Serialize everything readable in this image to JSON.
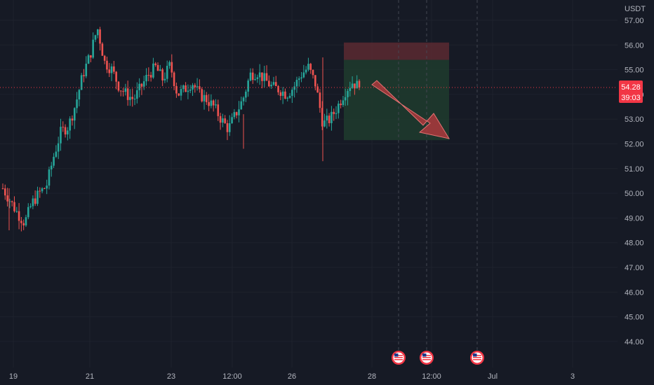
{
  "colors": {
    "background": "#161a25",
    "grid": "#1e222d",
    "up": "#26a69a",
    "down": "#ef5350",
    "price_tag": "#f23645",
    "text": "#b2b5be",
    "stop_zone": "#5b2a31",
    "profit_zone": "#1e3a2e",
    "arrow": "#c0393f"
  },
  "price_axis": {
    "currency": "USDT",
    "ticks": [
      "57.00",
      "56.00",
      "55.00",
      "54.00",
      "53.00",
      "52.00",
      "51.00",
      "50.00",
      "49.00",
      "48.00",
      "47.00",
      "46.00",
      "45.00",
      "44.00"
    ]
  },
  "time_axis": {
    "ticks": [
      "19",
      "21",
      "23",
      "12:00",
      "26",
      "28",
      "12:00",
      "Jul",
      "3"
    ]
  },
  "current_price": {
    "value": "54.28",
    "countdown": "39:03"
  },
  "events": [
    {
      "icon": "us-flag-icon"
    },
    {
      "icon": "us-flag-icon"
    },
    {
      "icon": "us-flag-icon"
    }
  ],
  "chart_data": {
    "type": "candlestick",
    "ylim": [
      43.6,
      57.6
    ],
    "x_unit": "days",
    "y_ticks": [
      57,
      56,
      55,
      54,
      53,
      52,
      51,
      50,
      49,
      48,
      47,
      46,
      45,
      44
    ],
    "x_ticks": [
      "19",
      "21",
      "23",
      "12:00",
      "26",
      "28",
      "12:00",
      "Jul",
      "3"
    ],
    "trend_path": [
      [
        0,
        50.2
      ],
      [
        1.5,
        49.7
      ],
      [
        3,
        49.2
      ],
      [
        4,
        48.8
      ],
      [
        5,
        49.6
      ],
      [
        6,
        50.0
      ],
      [
        7.5,
        50.3
      ],
      [
        9,
        51.5
      ],
      [
        10,
        52.5
      ],
      [
        11,
        52.7
      ],
      [
        12,
        53.6
      ],
      [
        13,
        54.8
      ],
      [
        14,
        55.6
      ],
      [
        15,
        56.7
      ],
      [
        16,
        55.3
      ],
      [
        17,
        55.0
      ],
      [
        18,
        54.3
      ],
      [
        19,
        54.0
      ],
      [
        20,
        53.8
      ],
      [
        21,
        54.3
      ],
      [
        22,
        54.8
      ],
      [
        23,
        55.1
      ],
      [
        24,
        54.6
      ],
      [
        25,
        55.2
      ],
      [
        26,
        54.0
      ],
      [
        27,
        54.2
      ],
      [
        28,
        54.5
      ],
      [
        29,
        54.0
      ],
      [
        30,
        53.8
      ],
      [
        31,
        53.5
      ],
      [
        32,
        53.0
      ],
      [
        33,
        52.6
      ],
      [
        34,
        53.2
      ],
      [
        35,
        53.8
      ],
      [
        36,
        54.8
      ],
      [
        37,
        54.9
      ],
      [
        38,
        54.6
      ],
      [
        39,
        54.3
      ],
      [
        40,
        54.2
      ],
      [
        41,
        54.0
      ],
      [
        42,
        54.3
      ],
      [
        43,
        54.8
      ],
      [
        44,
        55.1
      ],
      [
        45,
        54.4
      ],
      [
        46,
        52.8
      ],
      [
        47,
        53.0
      ],
      [
        48,
        53.5
      ],
      [
        49,
        54.1
      ],
      [
        50,
        54.5
      ],
      [
        51,
        54.3
      ]
    ],
    "stop_zone": [
      56.1,
      55.4
    ],
    "profit_zone": [
      55.4,
      52.15
    ],
    "current": 54.28
  }
}
